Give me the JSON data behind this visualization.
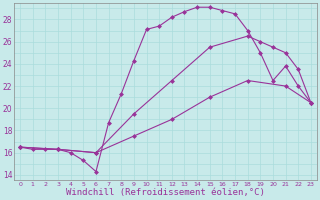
{
  "bg_color": "#c8eaea",
  "line_color": "#993399",
  "grid_color": "#aadddd",
  "xlabel": "Windchill (Refroidissement éolien,°C)",
  "xlabel_fontsize": 6.5,
  "ylim": [
    13.5,
    29.5
  ],
  "xlim": [
    -0.5,
    23.5
  ],
  "curve1_x": [
    0,
    1,
    2,
    3,
    4,
    5,
    6,
    7,
    8,
    9,
    10,
    11,
    12,
    13,
    14,
    15,
    16,
    17,
    18,
    19,
    20,
    21,
    22,
    23
  ],
  "curve1_y": [
    16.5,
    16.3,
    16.3,
    16.3,
    16.0,
    15.3,
    14.3,
    18.7,
    21.3,
    24.3,
    27.1,
    27.4,
    28.2,
    28.7,
    29.1,
    29.1,
    28.8,
    28.5,
    27.0,
    25.0,
    22.5,
    23.8,
    22.0,
    20.5
  ],
  "curve2_x": [
    0,
    3,
    6,
    9,
    12,
    15,
    18,
    19,
    20,
    21,
    22,
    23
  ],
  "curve2_y": [
    16.5,
    16.3,
    16.0,
    19.5,
    22.5,
    25.5,
    26.5,
    26.0,
    25.5,
    25.0,
    23.5,
    20.5
  ],
  "curve3_x": [
    0,
    3,
    6,
    9,
    12,
    15,
    18,
    21,
    23
  ],
  "curve3_y": [
    16.5,
    16.3,
    16.0,
    17.5,
    19.0,
    21.0,
    22.5,
    22.0,
    20.5
  ],
  "marker": "D",
  "marker_size": 2.5,
  "line_width": 0.8,
  "xtick_fontsize": 4.5,
  "ytick_fontsize": 5.5
}
